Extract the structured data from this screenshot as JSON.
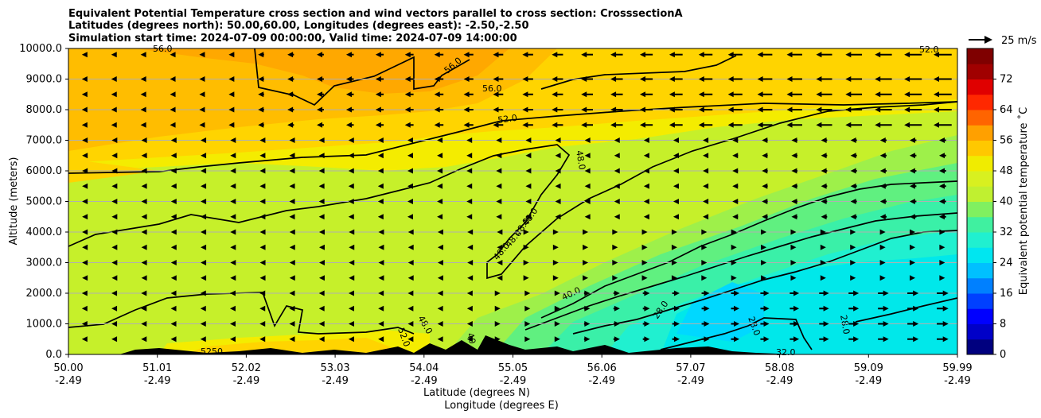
{
  "chart_data": {
    "type": "heatmap",
    "title_lines": [
      "Equivalent Potential Temperature cross section and wind vectors parallel to cross section: CrosssectionA",
      "Latitudes (degrees north): 50.00,60.00, Longitudes (degrees east): -2.50,-2.50",
      "Simulation start time: 2024-07-09 00:00:00, Valid time: 2024-07-09 14:00:00"
    ],
    "ylabel": "Altitude (meters)",
    "xlabel_lines": [
      "Latitude (degrees N)",
      "Longitude (degrees E)"
    ],
    "ylim": [
      0,
      10000
    ],
    "y_ticks": [
      "0.0",
      "1000.0",
      "2000.0",
      "3000.0",
      "4000.0",
      "5000.0",
      "6000.0",
      "7000.0",
      "8000.0",
      "9000.0",
      "10000.0"
    ],
    "x_ticks": [
      {
        "lat": "50.00",
        "lon": "-2.49"
      },
      {
        "lat": "51.01",
        "lon": "-2.49"
      },
      {
        "lat": "52.02",
        "lon": "-2.49"
      },
      {
        "lat": "53.03",
        "lon": "-2.49"
      },
      {
        "lat": "54.04",
        "lon": "-2.49"
      },
      {
        "lat": "55.05",
        "lon": "-2.49"
      },
      {
        "lat": "56.06",
        "lon": "-2.49"
      },
      {
        "lat": "57.07",
        "lon": "-2.49"
      },
      {
        "lat": "58.08",
        "lon": "-2.49"
      },
      {
        "lat": "59.09",
        "lon": "-2.49"
      },
      {
        "lat": "59.99",
        "lon": "-2.49"
      }
    ],
    "grid": "horizontal",
    "colorbar": {
      "label": "Equivalent potential temperature ˚C",
      "ticks": [
        "0",
        "8",
        "16",
        "24",
        "32",
        "40",
        "48",
        "56",
        "64",
        "72"
      ],
      "range": [
        0,
        80
      ],
      "colors": [
        "#00007f",
        "#0000c8",
        "#0000ff",
        "#0040ff",
        "#0080ff",
        "#00c0ff",
        "#00e6f0",
        "#20f0d0",
        "#40f0a0",
        "#80f060",
        "#c0f030",
        "#d8f020",
        "#f0ec00",
        "#ffc800",
        "#ffa000",
        "#ff6400",
        "#ff2800",
        "#e00000",
        "#a00000",
        "#7f0000"
      ]
    },
    "contour_labels": [
      "56.0",
      "56.0",
      "56.0",
      "52.0",
      "52.0",
      "48.0",
      "48.0",
      "48.0",
      "48.0",
      "48.0",
      "48.0",
      "48.0",
      "40",
      "40.0",
      "28.0",
      "28.0",
      "28.0",
      "32.0",
      "52.0",
      "52",
      "50",
      "52.0"
    ],
    "wind_legend": "25 m/s",
    "wind_rows_altitude": [
      9800,
      9000,
      8500,
      8000,
      7500,
      7000,
      6500,
      6000,
      5500,
      5000,
      4500,
      4000,
      3500,
      3000,
      2500,
      2000,
      1500,
      1000,
      500
    ]
  }
}
